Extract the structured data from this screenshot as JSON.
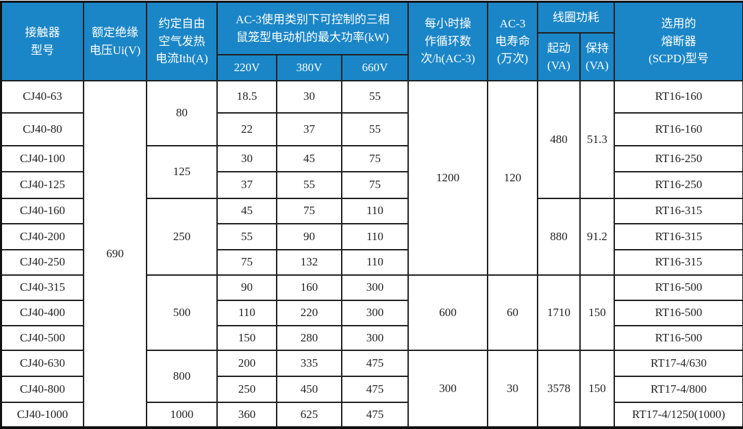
{
  "colors": {
    "header_background": "#1B86C7",
    "header_text": "#FFFFFF",
    "body_background": "#FFFFFF",
    "grid_line": "#1F1F1F",
    "body_text": "#1F1F1F"
  },
  "table": {
    "header_row_count": 3,
    "header_cells": [
      {
        "name": "col-contactor-model",
        "text": "接触器\n型号",
        "row": 1,
        "col": 1,
        "rowspan": 3
      },
      {
        "name": "col-rated-insulation-voltage",
        "text": "额定绝缘\n电压Ui(V)",
        "row": 1,
        "col": 2,
        "rowspan": 3
      },
      {
        "name": "col-free-air-thermal-current",
        "text": "约定自由\n空气发热\n电流Ith(A)",
        "row": 1,
        "col": 3,
        "rowspan": 3
      },
      {
        "name": "col-ac3-max-motor-power",
        "text": "AC-3使用类别下可控制的三相\n鼠笼型电动机的最大功率(kW)",
        "row": 1,
        "col": 4,
        "rowspan": 2,
        "colspan": 3
      },
      {
        "name": "col-220v",
        "text": "220V",
        "row": 3,
        "col": 4
      },
      {
        "name": "col-380v",
        "text": "380V",
        "row": 3,
        "col": 5
      },
      {
        "name": "col-660v",
        "text": "660V",
        "row": 3,
        "col": 6
      },
      {
        "name": "col-operating-cycles-per-hour",
        "text": "每小时操\n作循环数\n次/h(AC-3)",
        "row": 1,
        "col": 7,
        "rowspan": 3
      },
      {
        "name": "col-ac3-electrical-life",
        "text": "AC-3\n电寿命\n(万次)",
        "row": 1,
        "col": 8,
        "rowspan": 3
      },
      {
        "name": "col-coil-power-consumption",
        "text": "线圈功耗",
        "row": 1,
        "col": 9,
        "colspan": 2
      },
      {
        "name": "col-coil-pickup-va",
        "text": "起动\n(VA)",
        "row": 2,
        "col": 9,
        "rowspan": 2
      },
      {
        "name": "col-coil-holding-va",
        "text": "保持\n(VA)",
        "row": 2,
        "col": 10,
        "rowspan": 2
      },
      {
        "name": "col-recommended-fuse",
        "text": "选用的\n熔断器\n(SCPD)型号",
        "row": 1,
        "col": 11,
        "rowspan": 3
      }
    ],
    "body_cells": [
      {
        "name": "model-cj40-63",
        "text": "CJ40-63",
        "row": 1,
        "col": 1
      },
      {
        "name": "model-cj40-80",
        "text": "CJ40-80",
        "row": 2,
        "col": 1
      },
      {
        "name": "model-cj40-100",
        "text": "CJ40-100",
        "row": 3,
        "col": 1
      },
      {
        "name": "model-cj40-125",
        "text": "CJ40-125",
        "row": 4,
        "col": 1
      },
      {
        "name": "model-cj40-160",
        "text": "CJ40-160",
        "row": 5,
        "col": 1
      },
      {
        "name": "model-cj40-200",
        "text": "CJ40-200",
        "row": 6,
        "col": 1
      },
      {
        "name": "model-cj40-250",
        "text": "CJ40-250",
        "row": 7,
        "col": 1
      },
      {
        "name": "model-cj40-315",
        "text": "CJ40-315",
        "row": 8,
        "col": 1
      },
      {
        "name": "model-cj40-400",
        "text": "CJ40-400",
        "row": 9,
        "col": 1
      },
      {
        "name": "model-cj40-500",
        "text": "CJ40-500",
        "row": 10,
        "col": 1
      },
      {
        "name": "model-cj40-630",
        "text": "CJ40-630",
        "row": 11,
        "col": 1
      },
      {
        "name": "model-cj40-800",
        "text": "CJ40-800",
        "row": 12,
        "col": 1
      },
      {
        "name": "model-cj40-1000",
        "text": "CJ40-1000",
        "row": 13,
        "col": 1
      },
      {
        "name": "ui-voltage-690",
        "text": "690",
        "row": 1,
        "col": 2,
        "rowspan": 13
      },
      {
        "name": "ith-80",
        "text": "80",
        "row": 1,
        "col": 3,
        "rowspan": 2
      },
      {
        "name": "ith-125",
        "text": "125",
        "row": 3,
        "col": 3,
        "rowspan": 2
      },
      {
        "name": "ith-250",
        "text": "250",
        "row": 5,
        "col": 3,
        "rowspan": 3
      },
      {
        "name": "ith-500",
        "text": "500",
        "row": 8,
        "col": 3,
        "rowspan": 3
      },
      {
        "name": "ith-800",
        "text": "800",
        "row": 11,
        "col": 3,
        "rowspan": 2
      },
      {
        "name": "ith-1000",
        "text": "1000",
        "row": 13,
        "col": 3
      },
      {
        "name": "p220-r1",
        "text": "18.5",
        "row": 1,
        "col": 4
      },
      {
        "name": "p220-r2",
        "text": "22",
        "row": 2,
        "col": 4
      },
      {
        "name": "p220-r3",
        "text": "30",
        "row": 3,
        "col": 4
      },
      {
        "name": "p220-r4",
        "text": "37",
        "row": 4,
        "col": 4
      },
      {
        "name": "p220-r5",
        "text": "45",
        "row": 5,
        "col": 4
      },
      {
        "name": "p220-r6",
        "text": "55",
        "row": 6,
        "col": 4
      },
      {
        "name": "p220-r7",
        "text": "75",
        "row": 7,
        "col": 4
      },
      {
        "name": "p220-r8",
        "text": "90",
        "row": 8,
        "col": 4
      },
      {
        "name": "p220-r9",
        "text": "110",
        "row": 9,
        "col": 4
      },
      {
        "name": "p220-r10",
        "text": "150",
        "row": 10,
        "col": 4
      },
      {
        "name": "p220-r11",
        "text": "200",
        "row": 11,
        "col": 4
      },
      {
        "name": "p220-r12",
        "text": "250",
        "row": 12,
        "col": 4
      },
      {
        "name": "p220-r13",
        "text": "360",
        "row": 13,
        "col": 4
      },
      {
        "name": "p380-r1",
        "text": "30",
        "row": 1,
        "col": 5
      },
      {
        "name": "p380-r2",
        "text": "37",
        "row": 2,
        "col": 5
      },
      {
        "name": "p380-r3",
        "text": "45",
        "row": 3,
        "col": 5
      },
      {
        "name": "p380-r4",
        "text": "55",
        "row": 4,
        "col": 5
      },
      {
        "name": "p380-r5",
        "text": "75",
        "row": 5,
        "col": 5
      },
      {
        "name": "p380-r6",
        "text": "90",
        "row": 6,
        "col": 5
      },
      {
        "name": "p380-r7",
        "text": "132",
        "row": 7,
        "col": 5
      },
      {
        "name": "p380-r8",
        "text": "160",
        "row": 8,
        "col": 5
      },
      {
        "name": "p380-r9",
        "text": "220",
        "row": 9,
        "col": 5
      },
      {
        "name": "p380-r10",
        "text": "280",
        "row": 10,
        "col": 5
      },
      {
        "name": "p380-r11",
        "text": "335",
        "row": 11,
        "col": 5
      },
      {
        "name": "p380-r12",
        "text": "450",
        "row": 12,
        "col": 5
      },
      {
        "name": "p380-r13",
        "text": "625",
        "row": 13,
        "col": 5
      },
      {
        "name": "p660-r1",
        "text": "55",
        "row": 1,
        "col": 6
      },
      {
        "name": "p660-r2",
        "text": "55",
        "row": 2,
        "col": 6
      },
      {
        "name": "p660-r3",
        "text": "75",
        "row": 3,
        "col": 6
      },
      {
        "name": "p660-r4",
        "text": "75",
        "row": 4,
        "col": 6
      },
      {
        "name": "p660-r5",
        "text": "110",
        "row": 5,
        "col": 6
      },
      {
        "name": "p660-r6",
        "text": "110",
        "row": 6,
        "col": 6
      },
      {
        "name": "p660-r7",
        "text": "110",
        "row": 7,
        "col": 6
      },
      {
        "name": "p660-r8",
        "text": "300",
        "row": 8,
        "col": 6
      },
      {
        "name": "p660-r9",
        "text": "300",
        "row": 9,
        "col": 6
      },
      {
        "name": "p660-r10",
        "text": "300",
        "row": 10,
        "col": 6
      },
      {
        "name": "p660-r11",
        "text": "475",
        "row": 11,
        "col": 6
      },
      {
        "name": "p660-r12",
        "text": "475",
        "row": 12,
        "col": 6
      },
      {
        "name": "p660-r13",
        "text": "475",
        "row": 13,
        "col": 6
      },
      {
        "name": "cycles-1200",
        "text": "1200",
        "row": 1,
        "col": 7,
        "rowspan": 7
      },
      {
        "name": "cycles-600",
        "text": "600",
        "row": 8,
        "col": 7,
        "rowspan": 3
      },
      {
        "name": "cycles-300",
        "text": "300",
        "row": 11,
        "col": 7,
        "rowspan": 3
      },
      {
        "name": "life-120",
        "text": "120",
        "row": 1,
        "col": 8,
        "rowspan": 7
      },
      {
        "name": "life-60",
        "text": "60",
        "row": 8,
        "col": 8,
        "rowspan": 3
      },
      {
        "name": "life-30",
        "text": "30",
        "row": 11,
        "col": 8,
        "rowspan": 3
      },
      {
        "name": "pickup-480",
        "text": "480",
        "row": 1,
        "col": 9,
        "rowspan": 4
      },
      {
        "name": "pickup-880",
        "text": "880",
        "row": 5,
        "col": 9,
        "rowspan": 3
      },
      {
        "name": "pickup-1710",
        "text": "1710",
        "row": 8,
        "col": 9,
        "rowspan": 3
      },
      {
        "name": "pickup-3578",
        "text": "3578",
        "row": 11,
        "col": 9,
        "rowspan": 3
      },
      {
        "name": "hold-51-3",
        "text": "51.3",
        "row": 1,
        "col": 10,
        "rowspan": 4
      },
      {
        "name": "hold-91-2",
        "text": "91.2",
        "row": 5,
        "col": 10,
        "rowspan": 3
      },
      {
        "name": "hold-150-a",
        "text": "150",
        "row": 8,
        "col": 10,
        "rowspan": 3
      },
      {
        "name": "hold-150-b",
        "text": "150",
        "row": 11,
        "col": 10,
        "rowspan": 3
      },
      {
        "name": "fuse-r1",
        "text": "RT16-160",
        "row": 1,
        "col": 11
      },
      {
        "name": "fuse-r2",
        "text": "RT16-160",
        "row": 2,
        "col": 11
      },
      {
        "name": "fuse-r3",
        "text": "RT16-250",
        "row": 3,
        "col": 11
      },
      {
        "name": "fuse-r4",
        "text": "RT16-250",
        "row": 4,
        "col": 11
      },
      {
        "name": "fuse-r5",
        "text": "RT16-315",
        "row": 5,
        "col": 11
      },
      {
        "name": "fuse-r6",
        "text": "RT16-315",
        "row": 6,
        "col": 11
      },
      {
        "name": "fuse-r7",
        "text": "RT16-315",
        "row": 7,
        "col": 11
      },
      {
        "name": "fuse-r8",
        "text": "RT16-500",
        "row": 8,
        "col": 11
      },
      {
        "name": "fuse-r9",
        "text": "RT16-500",
        "row": 9,
        "col": 11
      },
      {
        "name": "fuse-r10",
        "text": "RT16-500",
        "row": 10,
        "col": 11
      },
      {
        "name": "fuse-r11",
        "text": "RT17-4/630",
        "row": 11,
        "col": 11
      },
      {
        "name": "fuse-r12",
        "text": "RT17-4/800",
        "row": 12,
        "col": 11
      },
      {
        "name": "fuse-r13",
        "text": "RT17-4/1250(1000)",
        "row": 13,
        "col": 11
      }
    ]
  },
  "chart_data": {
    "type": "table",
    "title": "",
    "columns": [
      "接触器型号",
      "额定绝缘电压Ui(V)",
      "约定自由空气发热电流Ith(A)",
      "AC-3使用类别下可控制的三相鼠笼型电动机的最大功率(kW) 220V",
      "AC-3使用类别下可控制的三相鼠笼型电动机的最大功率(kW) 380V",
      "AC-3使用类别下可控制的三相鼠笼型电动机的最大功率(kW) 660V",
      "每小时操作循环数次/h(AC-3)",
      "AC-3电寿命(万次)",
      "线圈功耗 起动(VA)",
      "线圈功耗 保持(VA)",
      "选用的熔断器(SCPD)型号"
    ],
    "rows": [
      [
        "CJ40-63",
        690,
        80,
        18.5,
        30,
        55,
        1200,
        120,
        480,
        51.3,
        "RT16-160"
      ],
      [
        "CJ40-80",
        690,
        80,
        22,
        37,
        55,
        1200,
        120,
        480,
        51.3,
        "RT16-160"
      ],
      [
        "CJ40-100",
        690,
        125,
        30,
        45,
        75,
        1200,
        120,
        480,
        51.3,
        "RT16-250"
      ],
      [
        "CJ40-125",
        690,
        125,
        37,
        55,
        75,
        1200,
        120,
        480,
        51.3,
        "RT16-250"
      ],
      [
        "CJ40-160",
        690,
        250,
        45,
        75,
        110,
        1200,
        120,
        880,
        91.2,
        "RT16-315"
      ],
      [
        "CJ40-200",
        690,
        250,
        55,
        90,
        110,
        1200,
        120,
        880,
        91.2,
        "RT16-315"
      ],
      [
        "CJ40-250",
        690,
        250,
        75,
        132,
        110,
        1200,
        120,
        880,
        91.2,
        "RT16-315"
      ],
      [
        "CJ40-315",
        690,
        500,
        90,
        160,
        300,
        600,
        60,
        1710,
        150,
        "RT16-500"
      ],
      [
        "CJ40-400",
        690,
        500,
        110,
        220,
        300,
        600,
        60,
        1710,
        150,
        "RT16-500"
      ],
      [
        "CJ40-500",
        690,
        500,
        150,
        280,
        300,
        600,
        60,
        1710,
        150,
        "RT16-500"
      ],
      [
        "CJ40-630",
        690,
        800,
        200,
        335,
        475,
        300,
        30,
        3578,
        150,
        "RT17-4/630"
      ],
      [
        "CJ40-800",
        690,
        800,
        250,
        450,
        475,
        300,
        30,
        3578,
        150,
        "RT17-4/800"
      ],
      [
        "CJ40-1000",
        690,
        1000,
        360,
        625,
        475,
        300,
        30,
        3578,
        150,
        "RT17-4/1250(1000)"
      ]
    ]
  }
}
